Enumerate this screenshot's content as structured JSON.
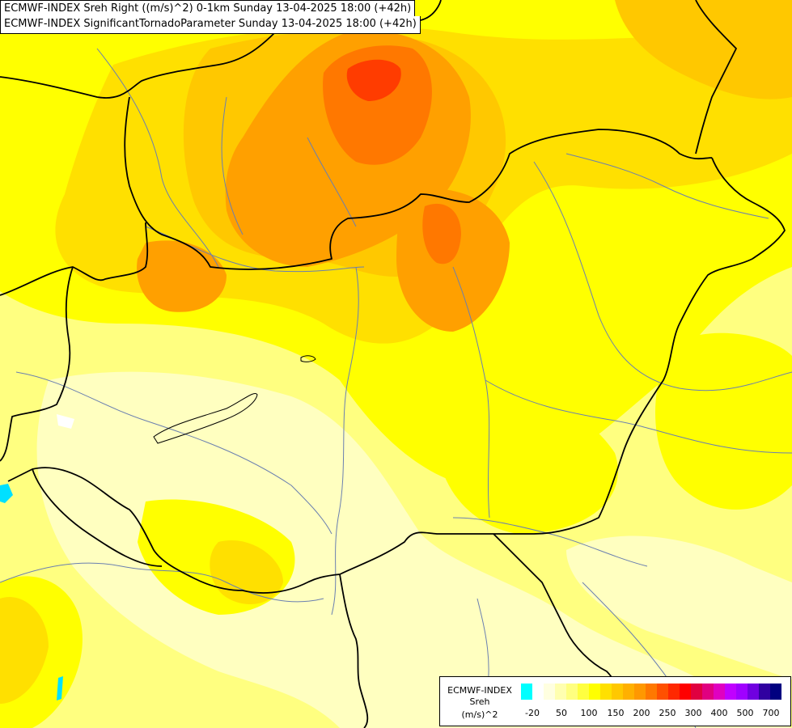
{
  "titles": {
    "line1": "ECMWF-INDEX Sreh Right ((m/s)^2) 0-1km Sunday 13-04-2025 18:00 (+42h)",
    "line2": "ECMWF-INDEX SignificantTornadoParameter Sunday 13-04-2025 18:00 (+42h)"
  },
  "legend": {
    "model": "ECMWF-INDEX",
    "parameter": "Sreh",
    "unit": "(m/s)^2",
    "colors": [
      "#00ffff",
      "#ffffff",
      "#ffffe0",
      "#ffffb0",
      "#ffff80",
      "#ffff40",
      "#ffff00",
      "#ffe000",
      "#ffc800",
      "#ffb000",
      "#ff9800",
      "#ff7800",
      "#ff5000",
      "#ff2800",
      "#ff0000",
      "#e00040",
      "#e00080",
      "#e000c0",
      "#c000ff",
      "#a000ff",
      "#7000e0",
      "#3000a0",
      "#000080"
    ],
    "tick_labels": [
      "-20",
      "50",
      "100",
      "150",
      "200",
      "250",
      "300",
      "400",
      "500",
      "700"
    ]
  },
  "map_colors": {
    "pale": "#ffffc0",
    "light": "#ffff80",
    "yellow": "#ffff00",
    "gold": "#ffe000",
    "amber": "#ffc800",
    "orange": "#ffa000",
    "dark_orange": "#ff7800",
    "red_orange": "#ff3c00",
    "cyan": "#00e0ff",
    "border": "#000000",
    "river": "#6a7fb0"
  }
}
